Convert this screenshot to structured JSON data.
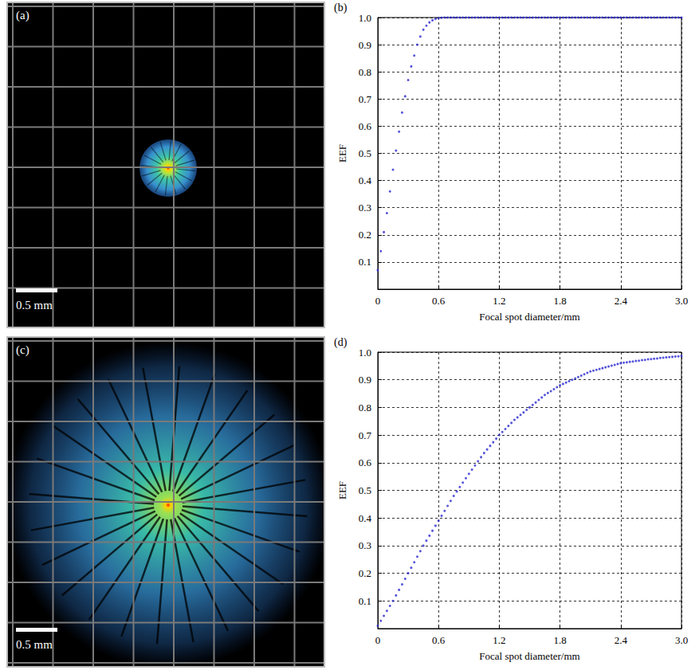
{
  "chart_data": [
    {
      "type": "image",
      "panel": "(a)",
      "scale_bar": "0.5 mm"
    },
    {
      "type": "scatter",
      "panel": "(b)",
      "x_label": "Focal spot diameter/mm",
      "y_label": "EEF",
      "x": [
        0,
        0.03,
        0.06,
        0.09,
        0.12,
        0.15,
        0.18,
        0.21,
        0.24,
        0.27,
        0.3,
        0.33,
        0.36,
        0.39,
        0.42,
        0.45,
        0.48,
        0.51,
        0.54,
        0.57,
        0.6,
        0.63,
        0.66,
        0.69,
        0.72,
        0.75,
        0.78,
        0.81,
        0.84,
        0.87,
        0.9,
        0.93,
        0.96,
        0.99,
        1.02,
        1.05,
        1.08,
        1.11,
        1.14,
        1.17,
        1.2,
        1.23,
        1.26,
        1.29,
        1.32,
        1.35,
        1.38,
        1.41,
        1.44,
        1.47,
        1.5,
        1.53,
        1.56,
        1.59,
        1.62,
        1.65,
        1.68,
        1.71,
        1.74,
        1.77,
        1.8,
        1.83,
        1.86,
        1.89,
        1.92,
        1.95,
        1.98,
        2.01,
        2.04,
        2.07,
        2.1,
        2.13,
        2.16,
        2.19,
        2.22,
        2.25,
        2.28,
        2.31,
        2.34,
        2.37,
        2.4,
        2.43,
        2.46,
        2.49,
        2.52,
        2.55,
        2.58,
        2.61,
        2.64,
        2.67,
        2.7,
        2.73,
        2.76,
        2.79,
        2.82,
        2.85,
        2.88,
        2.91,
        2.94,
        2.97,
        3
      ],
      "values": [
        0.07,
        0.14,
        0.21,
        0.28,
        0.36,
        0.44,
        0.51,
        0.58,
        0.65,
        0.71,
        0.77,
        0.82,
        0.86,
        0.9,
        0.93,
        0.955,
        0.97,
        0.982,
        0.99,
        0.995,
        0.998,
        0.999,
        1,
        1,
        1,
        1,
        1,
        1,
        1,
        1,
        1,
        1,
        1,
        1,
        1,
        1,
        1,
        1,
        1,
        1,
        1,
        1,
        1,
        1,
        1,
        1,
        1,
        1,
        1,
        1,
        1,
        1,
        1,
        1,
        1,
        1,
        1,
        1,
        1,
        1,
        1,
        1,
        1,
        1,
        1,
        1,
        1,
        1,
        1,
        1,
        1,
        1,
        1,
        1,
        1,
        1,
        1,
        1,
        1,
        1,
        1,
        1,
        1,
        1,
        1,
        1,
        1,
        1,
        1,
        1,
        1,
        1,
        1,
        1,
        1,
        1,
        1,
        1,
        1,
        1,
        1
      ],
      "color": "#2a2ad0",
      "marker": "dot",
      "xlim": [
        0,
        3
      ],
      "xticks": [
        0,
        0.6,
        1.2,
        1.8,
        2.4,
        {
          "value": 3,
          "label": "3.0"
        }
      ],
      "ylim": [
        0,
        1
      ],
      "yticks": [
        0.1,
        0.2,
        0.3,
        0.4,
        0.5,
        0.6,
        0.7,
        0.8,
        0.9,
        {
          "value": 1,
          "label": "1.0"
        }
      ],
      "grid": true
    },
    {
      "type": "image",
      "panel": "(c)",
      "scale_bar": "0.5 mm"
    },
    {
      "type": "scatter",
      "panel": "(d)",
      "x_label": "Focal spot diameter/mm",
      "y_label": "EEF",
      "x": [
        0,
        0.03,
        0.06,
        0.09,
        0.12,
        0.15,
        0.18,
        0.21,
        0.24,
        0.27,
        0.3,
        0.33,
        0.36,
        0.39,
        0.42,
        0.45,
        0.48,
        0.51,
        0.54,
        0.57,
        0.6,
        0.63,
        0.66,
        0.69,
        0.72,
        0.75,
        0.78,
        0.81,
        0.84,
        0.87,
        0.9,
        0.93,
        0.96,
        0.99,
        1.02,
        1.05,
        1.08,
        1.11,
        1.14,
        1.17,
        1.2,
        1.23,
        1.26,
        1.29,
        1.32,
        1.35,
        1.38,
        1.41,
        1.44,
        1.47,
        1.5,
        1.53,
        1.56,
        1.59,
        1.62,
        1.65,
        1.68,
        1.71,
        1.74,
        1.77,
        1.8,
        1.83,
        1.86,
        1.89,
        1.92,
        1.95,
        1.98,
        2.01,
        2.04,
        2.07,
        2.1,
        2.13,
        2.16,
        2.19,
        2.22,
        2.25,
        2.28,
        2.31,
        2.34,
        2.37,
        2.4,
        2.43,
        2.46,
        2.49,
        2.52,
        2.55,
        2.58,
        2.61,
        2.64,
        2.67,
        2.7,
        2.73,
        2.76,
        2.79,
        2.82,
        2.85,
        2.88,
        2.91,
        2.94,
        2.97,
        3
      ],
      "values": [
        0.01,
        0.028,
        0.046,
        0.064,
        0.082,
        0.1,
        0.12,
        0.14,
        0.16,
        0.18,
        0.2,
        0.22,
        0.24,
        0.26,
        0.28,
        0.3,
        0.318,
        0.336,
        0.354,
        0.372,
        0.39,
        0.408,
        0.426,
        0.444,
        0.462,
        0.48,
        0.496,
        0.512,
        0.528,
        0.544,
        0.56,
        0.575,
        0.59,
        0.605,
        0.62,
        0.635,
        0.648,
        0.661,
        0.674,
        0.687,
        0.7,
        0.711,
        0.722,
        0.733,
        0.744,
        0.755,
        0.764,
        0.773,
        0.782,
        0.791,
        0.8,
        0.809,
        0.818,
        0.827,
        0.836,
        0.845,
        0.852,
        0.859,
        0.866,
        0.873,
        0.88,
        0.885,
        0.89,
        0.895,
        0.9,
        0.905,
        0.91,
        0.915,
        0.92,
        0.925,
        0.93,
        0.933,
        0.936,
        0.939,
        0.942,
        0.945,
        0.948,
        0.951,
        0.954,
        0.957,
        0.96,
        0.962,
        0.963,
        0.965,
        0.966,
        0.968,
        0.969,
        0.971,
        0.972,
        0.974,
        0.975,
        0.976,
        0.977,
        0.979,
        0.98,
        0.981,
        0.982,
        0.983,
        0.984,
        0.985,
        0.986
      ],
      "color": "#2a2ad0",
      "marker": "dot",
      "xlim": [
        0,
        3
      ],
      "xticks": [
        0,
        0.6,
        1.2,
        1.8,
        2.4,
        {
          "value": 3,
          "label": "3.0"
        }
      ],
      "ylim": [
        0,
        1
      ],
      "yticks": [
        0.1,
        0.2,
        0.3,
        0.4,
        0.5,
        0.6,
        0.7,
        0.8,
        0.9,
        {
          "value": 1,
          "label": "1.0"
        }
      ],
      "grid": true
    }
  ]
}
